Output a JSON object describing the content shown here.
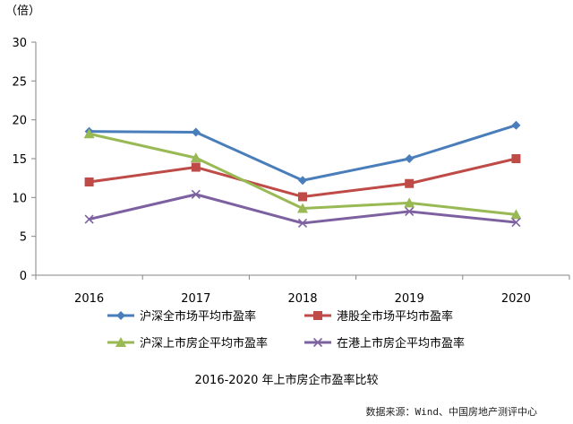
{
  "chart_data": {
    "type": "line",
    "title": "2016-2020 年上市房企市盈率比较",
    "ylabel": "（倍）",
    "xlabel": "",
    "categories": [
      "2016",
      "2017",
      "2018",
      "2019",
      "2020"
    ],
    "ylim": [
      0,
      30
    ],
    "yticks": [
      0,
      5,
      10,
      15,
      20,
      25,
      30
    ],
    "grid": false,
    "legend_placement": "bottom",
    "series": [
      {
        "name": "沪深全市场平均市盈率",
        "values": [
          18.5,
          18.4,
          12.2,
          15.0,
          19.3
        ],
        "color": "#4a7ebb",
        "marker": "diamond"
      },
      {
        "name": "港股全市场平均市盈率",
        "values": [
          12.0,
          13.9,
          10.1,
          11.8,
          15.0
        ],
        "color": "#be4b48",
        "marker": "square"
      },
      {
        "name": "沪深上市房企平均市盈率",
        "values": [
          18.2,
          15.1,
          8.6,
          9.3,
          7.8
        ],
        "color": "#98b954",
        "marker": "triangle"
      },
      {
        "name": "在港上市房企平均市盈率",
        "values": [
          7.2,
          10.4,
          6.7,
          8.2,
          6.8
        ],
        "color": "#7d60a0",
        "marker": "x"
      }
    ]
  },
  "source": "数据来源：Wind、中国房地产测评中心"
}
